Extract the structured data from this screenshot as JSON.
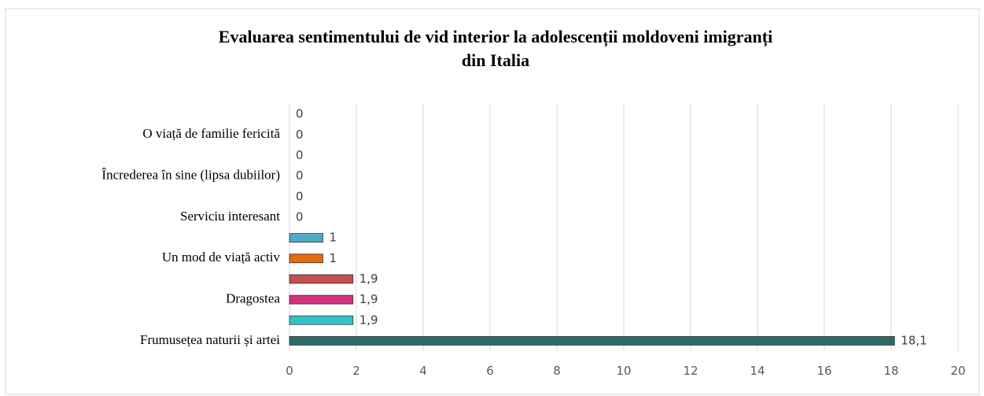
{
  "chart_data": {
    "type": "bar",
    "orientation": "horizontal",
    "title": [
      "Evaluarea sentimentului de vid interior la adolescenții moldoveni imigranți",
      "din Italia"
    ],
    "categories": [
      null,
      "O viață de familie fericită",
      null,
      "Încrederea în sine (lipsa dubiilor)",
      null,
      "Serviciu interesant",
      null,
      "Un mod de viață activ",
      null,
      "Dragostea",
      null,
      "Frumusețea naturii și artei"
    ],
    "values": [
      0,
      0,
      0,
      0,
      0,
      0,
      1,
      1,
      1.9,
      1.9,
      1.9,
      18.1
    ],
    "value_labels": [
      "0",
      "0",
      "0",
      "0",
      "0",
      "0",
      "1",
      "1",
      "1,9",
      "1,9",
      "1,9",
      "18,1"
    ],
    "colors": [
      "#4bacc6",
      "#e46c0a",
      "#4bacc6",
      "#e46c0a",
      "#4bacc6",
      "#e46c0a",
      "#4bacc6",
      "#e46c0a",
      "#c0504d",
      "#d6317d",
      "#31c3c8",
      "#2e6b66"
    ],
    "xlim": [
      0,
      20
    ],
    "xticks": [
      0,
      2,
      4,
      6,
      8,
      10,
      12,
      14,
      16,
      18,
      20
    ],
    "grid": true
  }
}
